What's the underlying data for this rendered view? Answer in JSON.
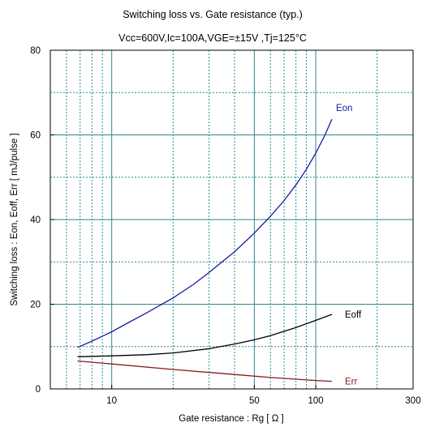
{
  "chart_data": {
    "type": "line",
    "title": "Switching loss  vs.  Gate resistance (typ.)",
    "subtitle": "Vcc=600V,Ic=100A,VGE=±15V ,Tj=125°C",
    "xlabel": "Gate resistance  : Rg  [   Ω ]",
    "ylabel": "Switching loss  : Eon, Eoff, Err  [ mJ/pulse ]",
    "x_scale": "log",
    "xlim": [
      5,
      300
    ],
    "ylim": [
      0,
      80
    ],
    "x_ticks": [
      {
        "value": 10,
        "label": "10"
      },
      {
        "value": 50,
        "label": "50"
      },
      {
        "value": 100,
        "label": "100"
      },
      {
        "value": 300,
        "label": "300"
      }
    ],
    "y_ticks": [
      {
        "value": 0,
        "label": "0"
      },
      {
        "value": 20,
        "label": "20"
      },
      {
        "value": 40,
        "label": "40"
      },
      {
        "value": 60,
        "label": "60"
      },
      {
        "value": 80,
        "label": "80"
      }
    ],
    "grid": true,
    "series": [
      {
        "name": "Eon",
        "color": "#1a1aa0",
        "x": [
          6.8,
          8,
          10,
          12,
          15,
          20,
          25,
          30,
          40,
          50,
          60,
          70,
          80,
          90,
          100,
          110,
          120
        ],
        "y": [
          9.8,
          11.3,
          13.5,
          15.6,
          18.1,
          21.5,
          24.6,
          27.5,
          32.4,
          36.8,
          40.8,
          44.5,
          48.2,
          51.9,
          55.7,
          59.6,
          63.7
        ]
      },
      {
        "name": "Eoff",
        "color": "#000000",
        "x": [
          6.8,
          10,
          15,
          20,
          30,
          40,
          50,
          60,
          80,
          100,
          120
        ],
        "y": [
          7.6,
          7.8,
          8.1,
          8.5,
          9.5,
          10.6,
          11.6,
          12.6,
          14.5,
          16.2,
          17.6
        ]
      },
      {
        "name": "Err",
        "color": "#8b1a1a",
        "x": [
          6.8,
          10,
          20,
          40,
          60,
          80,
          100,
          120
        ],
        "y": [
          6.6,
          5.9,
          4.6,
          3.4,
          2.7,
          2.3,
          2.0,
          1.8
        ]
      }
    ]
  }
}
